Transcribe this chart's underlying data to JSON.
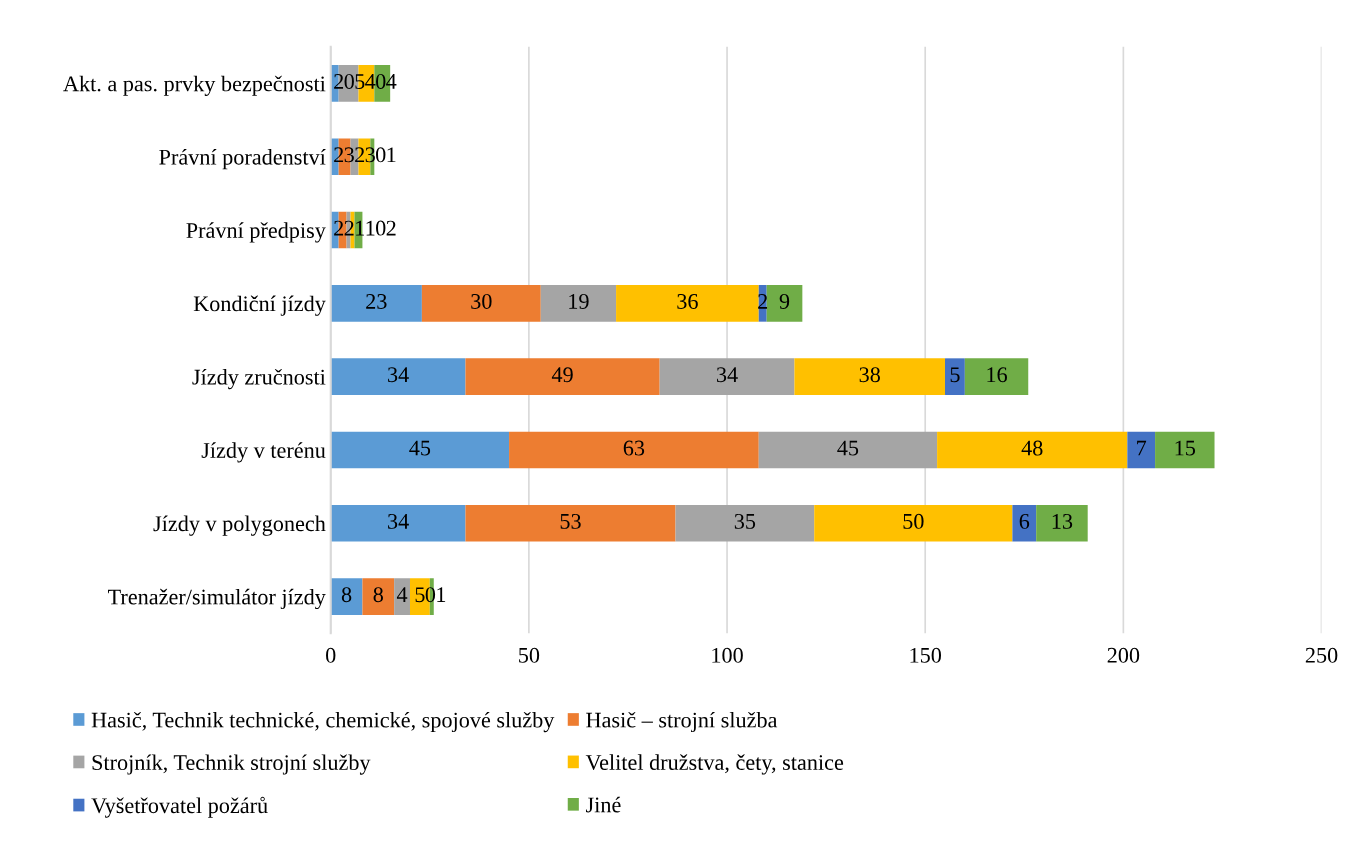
{
  "chart_data": {
    "type": "bar",
    "orientation": "horizontal",
    "stacked": true,
    "data_labels": true,
    "grid": "x",
    "legend": "bottom",
    "categories": [
      "Akt. a pas. prvky bezpečnosti",
      "Právní poradenství",
      "Právní předpisy",
      "Kondiční jízdy",
      "Jízdy zručnosti",
      "Jízdy v terénu",
      "Jízdy v polygonech",
      "Trenažer/simulátor jízdy"
    ],
    "xlim": [
      0,
      250
    ],
    "xticks": [
      0,
      50,
      100,
      150,
      200,
      250
    ],
    "series": [
      {
        "name": "Hasič, Technik technické, chemické, spojové služby",
        "color": "#5b9bd5",
        "values": [
          2,
          2,
          2,
          23,
          34,
          45,
          34,
          8
        ]
      },
      {
        "name": "Hasič – strojní služba",
        "color": "#ed7d31",
        "values": [
          0,
          3,
          2,
          30,
          49,
          63,
          53,
          8
        ]
      },
      {
        "name": "Strojník, Technik strojní služby",
        "color": "#a5a5a5",
        "values": [
          5,
          2,
          1,
          19,
          34,
          45,
          35,
          4
        ]
      },
      {
        "name": "Velitel družstva, čety, stanice",
        "color": "#ffc000",
        "values": [
          4,
          3,
          1,
          36,
          38,
          48,
          50,
          5
        ]
      },
      {
        "name": "Vyšetřovatel požárů",
        "color": "#4472c4",
        "values": [
          0,
          0,
          0,
          2,
          5,
          7,
          6,
          0
        ]
      },
      {
        "name": "Jiné",
        "color": "#70ad47",
        "values": [
          4,
          1,
          2,
          9,
          16,
          15,
          13,
          1
        ]
      }
    ]
  }
}
